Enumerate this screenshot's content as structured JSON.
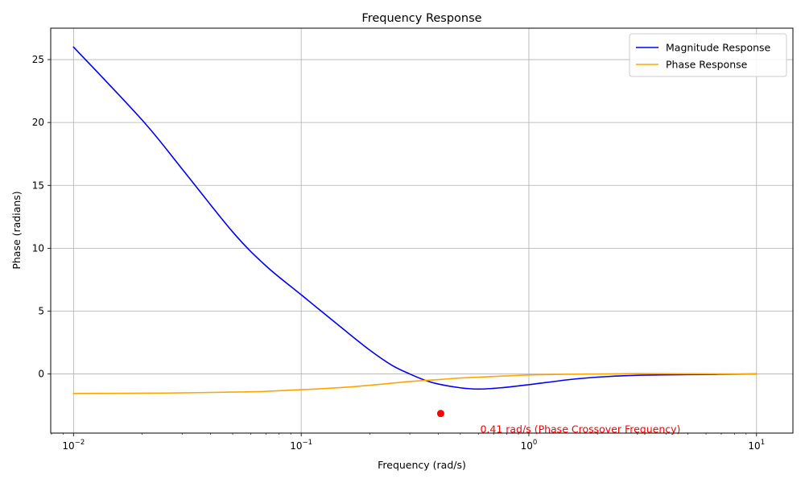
{
  "chart_data": {
    "type": "line",
    "title": "Frequency Response",
    "xlabel": "Frequency (rad/s)",
    "ylabel": "Phase (radians)",
    "xscale": "log",
    "xlim": [
      0.00794,
      14.45
    ],
    "ylim": [
      -4.7,
      27.5
    ],
    "grid": true,
    "legend_position": "top-right",
    "xticks": [
      {
        "value": 0.01,
        "base": "10",
        "exp": "−2"
      },
      {
        "value": 0.1,
        "base": "10",
        "exp": "−1"
      },
      {
        "value": 1,
        "base": "10",
        "exp": "0"
      },
      {
        "value": 10,
        "base": "10",
        "exp": "1"
      }
    ],
    "yticks": [
      "0",
      "5",
      "10",
      "15",
      "20",
      "25"
    ],
    "series": [
      {
        "name": "Magnitude Response",
        "color": "#0000ff",
        "points": [
          [
            0.01,
            26.0
          ],
          [
            0.02,
            20.2
          ],
          [
            0.03,
            16.3
          ],
          [
            0.05,
            11.3
          ],
          [
            0.07,
            8.6
          ],
          [
            0.1,
            6.3
          ],
          [
            0.15,
            3.7
          ],
          [
            0.2,
            1.9
          ],
          [
            0.25,
            0.7
          ],
          [
            0.3,
            0.0
          ],
          [
            0.35,
            -0.5
          ],
          [
            0.4,
            -0.8
          ],
          [
            0.5,
            -1.1
          ],
          [
            0.6,
            -1.2
          ],
          [
            0.75,
            -1.1
          ],
          [
            1.0,
            -0.85
          ],
          [
            1.5,
            -0.45
          ],
          [
            2.0,
            -0.25
          ],
          [
            3.0,
            -0.1
          ],
          [
            5.0,
            -0.05
          ],
          [
            10.0,
            0.0
          ]
        ]
      },
      {
        "name": "Phase Response",
        "color": "#ffa500",
        "points": [
          [
            0.01,
            -1.55
          ],
          [
            0.02,
            -1.53
          ],
          [
            0.03,
            -1.5
          ],
          [
            0.05,
            -1.44
          ],
          [
            0.07,
            -1.38
          ],
          [
            0.1,
            -1.25
          ],
          [
            0.15,
            -1.08
          ],
          [
            0.2,
            -0.9
          ],
          [
            0.3,
            -0.6
          ],
          [
            0.4,
            -0.45
          ],
          [
            0.5,
            -0.32
          ],
          [
            0.7,
            -0.2
          ],
          [
            1.0,
            -0.08
          ],
          [
            1.5,
            -0.02
          ],
          [
            2.0,
            0.0
          ],
          [
            3.0,
            0.03
          ],
          [
            5.0,
            0.02
          ],
          [
            10.0,
            0.0
          ]
        ]
      }
    ],
    "annotation": {
      "x": 0.41,
      "y": -3.14,
      "text": "0.41 rad/s (Phase Crossover Frequency)",
      "color": "#ff0000"
    }
  }
}
